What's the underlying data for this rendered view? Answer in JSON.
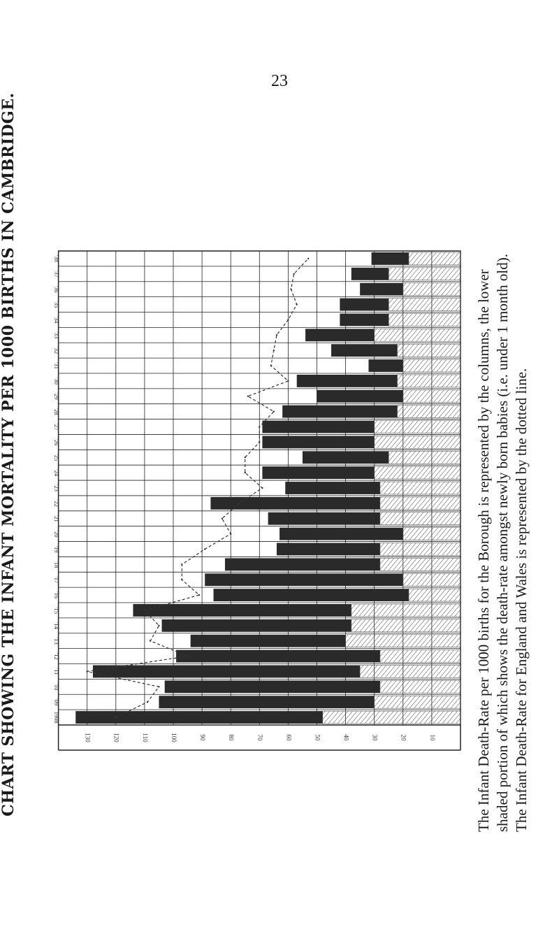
{
  "page_number": "23",
  "title": "CHART SHOWING THE INFANT MORTALITY PER 1000 BIRTHS IN CAMBRIDGE.",
  "caption": [
    "The Infant Death-Rate per 1000 births for the Borough is represented by the columns, the lower",
    "shaded portion of which shows the death-rate amongst newly born babies (i.e. under 1 month old).",
    "The Infant Death-Rate for England and Wales is represented by the dotted line."
  ],
  "colors": {
    "bar_dark": "#2a2a2a",
    "hatch": "#555555",
    "grid": "#222222",
    "dotted": "#333333"
  },
  "chart_data": {
    "type": "bar",
    "title": "CHART SHOWING THE INFANT MORTALITY PER 1000 BIRTHS IN CAMBRIDGE.",
    "orientation": "vertical columns (printed rotated 90°)",
    "categories": [
      "1908",
      "'09",
      "'10",
      "'11",
      "'12",
      "'13",
      "'14",
      "'15",
      "'16",
      "'17",
      "'18",
      "'19",
      "'20",
      "'21",
      "'22",
      "'23",
      "'24",
      "'25",
      "'26",
      "'27",
      "'28",
      "'29",
      "'30",
      "'31",
      "'32",
      "'33",
      "'34",
      "'35",
      "'36",
      "'37",
      "'38"
    ],
    "tick_labels": [
      "130",
      "120",
      "110",
      "100",
      "90",
      "80",
      "70",
      "60",
      "50",
      "40",
      "30",
      "20",
      "10"
    ],
    "ylim": [
      0,
      140
    ],
    "grid": true,
    "series": [
      {
        "name": "Infant Death-Rate (Borough)",
        "style": "columns",
        "values": [
          134,
          105,
          103,
          128,
          99,
          94,
          104,
          114,
          86,
          89,
          82,
          64,
          63,
          67,
          87,
          61,
          69,
          55,
          69,
          69,
          62,
          50,
          57,
          32,
          45,
          54,
          42,
          42,
          35,
          38,
          31
        ]
      },
      {
        "name": "death-rate amongst newly born babies (under 1 month old)",
        "style": "shaded lower portion",
        "values": [
          48,
          30,
          28,
          35,
          28,
          40,
          38,
          38,
          18,
          20,
          28,
          28,
          20,
          28,
          28,
          28,
          30,
          25,
          30,
          30,
          22,
          20,
          22,
          20,
          22,
          30,
          25,
          25,
          20,
          25,
          18
        ]
      },
      {
        "name": "Infant Death-Rate for England and Wales",
        "style": "dotted line",
        "values": [
          120,
          109,
          105,
          130,
          95,
          108,
          105,
          110,
          91,
          97,
          97,
          89,
          80,
          83,
          77,
          69,
          75,
          75,
          70,
          70,
          65,
          74,
          60,
          66,
          65,
          64,
          60,
          57,
          59,
          58,
          53
        ]
      }
    ]
  }
}
